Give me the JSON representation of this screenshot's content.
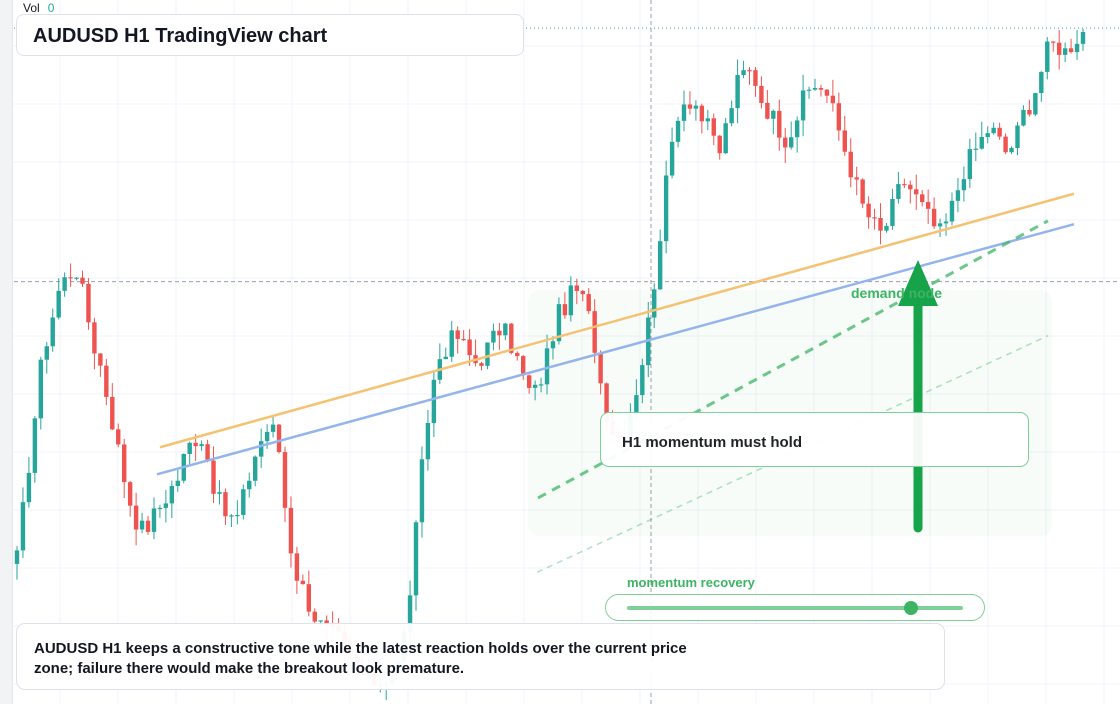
{
  "vol": {
    "label": "Vol",
    "value": "0"
  },
  "title": "AUDUSD H1 TradingView chart",
  "callout": "H1 momentum must hold",
  "zone_label": "demand node",
  "momentum": {
    "label": "momentum recovery",
    "level": 0.84
  },
  "caption": "AUDUSD H1 keeps a constructive tone while the latest reaction holds over the current price zone; failure there would make the breakout look premature.",
  "colors": {
    "up": "#26a69a",
    "down": "#ef5350",
    "accent": "#3cb464",
    "orange": "#f5c272",
    "blue": "#94b4ee"
  },
  "icons": {
    "signal": "up-arrow-icon"
  },
  "chart_data": {
    "type": "candlestick",
    "symbol": "AUDUSD",
    "timeframe": "H1",
    "price_range": [
      0,
      100
    ],
    "reference_levels": {
      "dotted_top": 98.5,
      "crosshair": 61
    },
    "series": {
      "closes": [
        20,
        30,
        40,
        50,
        55,
        60,
        62,
        63,
        58,
        52,
        48,
        42,
        36,
        30,
        26,
        24,
        26,
        28,
        30,
        32,
        36,
        38,
        38,
        32,
        28,
        26,
        26,
        30,
        35,
        38,
        40,
        36,
        24,
        18,
        15,
        12,
        10,
        9,
        8,
        6,
        4,
        3,
        2,
        2,
        3,
        4,
        10,
        22,
        35,
        45,
        50,
        52,
        53,
        51,
        49,
        50,
        52,
        54,
        53,
        50,
        46,
        44,
        47,
        52,
        56,
        58,
        60,
        58,
        54,
        46,
        40,
        38,
        40,
        44,
        50,
        58,
        68,
        78,
        86,
        88,
        88,
        85,
        83,
        80,
        85,
        90,
        92,
        92,
        88,
        86,
        84,
        82,
        85,
        88,
        90,
        90,
        88,
        84,
        80,
        76,
        72,
        70,
        68,
        70,
        74,
        76,
        74,
        72,
        70,
        68,
        70,
        74,
        78,
        80,
        82,
        84,
        82,
        80,
        82,
        86,
        88,
        92,
        96,
        96,
        95,
        97,
        98
      ],
      "orange_line": {
        "start": 36.5,
        "end": 74
      },
      "blue_line": {
        "start": 32.5,
        "end": 69.5
      },
      "green_dashed": {
        "start": 29,
        "end": 70
      },
      "green_dotted": {
        "start": 18,
        "end": 53
      }
    }
  }
}
